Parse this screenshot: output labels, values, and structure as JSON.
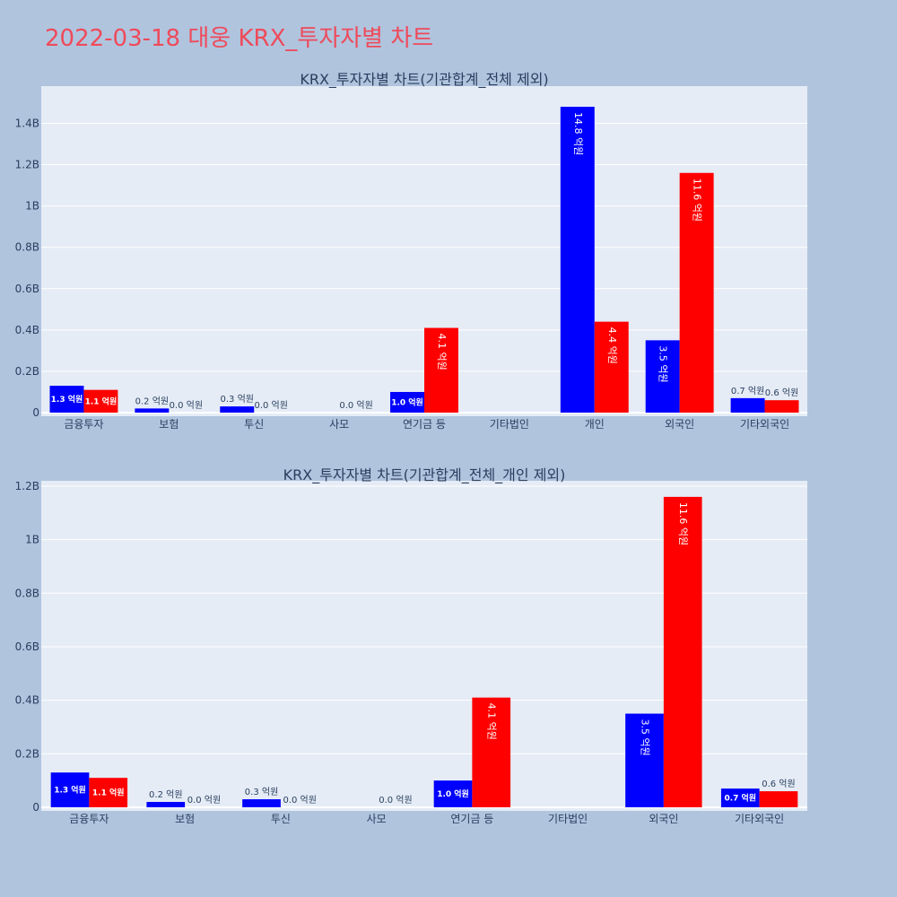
{
  "title": "2022-03-18 대웅 KRX_투자자별 차트",
  "colors": {
    "buy": "#0000ff",
    "sell": "#ff0000",
    "background": "#b0c4de",
    "plot": "#e5ecf6",
    "title": "#ef4a5a"
  },
  "chart_data": [
    {
      "type": "bar",
      "title": "KRX_투자자별 차트(기관합계_전체 제외)",
      "categories": [
        "금융투자",
        "보험",
        "투신",
        "사모",
        "연기금 등",
        "기타법인",
        "개인",
        "외국인",
        "기타외국인"
      ],
      "series": [
        {
          "color": "#0000ff",
          "values": [
            0.13,
            0.02,
            0.03,
            0,
            0.1,
            0,
            1.48,
            0.35,
            0.07
          ],
          "labels": [
            "1.3 억원",
            "0.2 억원",
            "0.3 억원",
            "",
            "1.0 억원",
            "",
            "14.8 억원",
            "3.5 억원",
            "0.7 억원"
          ]
        },
        {
          "color": "#ff0000",
          "values": [
            0.11,
            0.0,
            0.0,
            0.0,
            0.41,
            0,
            0.44,
            1.16,
            0.06
          ],
          "labels": [
            "1.1 억원",
            "0.0 억원",
            "0.0 억원",
            "0.0 억원",
            "4.1 억원",
            "",
            "4.4 억원",
            "11.6 억원",
            "0.6 억원"
          ]
        }
      ],
      "yticks": [
        "0",
        "0.2B",
        "0.4B",
        "0.6B",
        "0.8B",
        "1B",
        "1.2B",
        "1.4B"
      ],
      "ylim": [
        0,
        1.58
      ],
      "grid": true
    },
    {
      "type": "bar",
      "title": "KRX_투자자별 차트(기관합계_전체_개인 제외)",
      "categories": [
        "금융투자",
        "보험",
        "투신",
        "사모",
        "연기금 등",
        "기타법인",
        "외국인",
        "기타외국인"
      ],
      "series": [
        {
          "color": "#0000ff",
          "values": [
            0.13,
            0.02,
            0.03,
            0,
            0.1,
            0,
            0.35,
            0.07
          ],
          "labels": [
            "1.3 억원",
            "0.2 억원",
            "0.3 억원",
            "",
            "1.0 억원",
            "",
            "3.5 억원",
            "0.7 억원"
          ]
        },
        {
          "color": "#ff0000",
          "values": [
            0.11,
            0.0,
            0.0,
            0.0,
            0.41,
            0,
            1.16,
            0.06
          ],
          "labels": [
            "1.1 억원",
            "0.0 억원",
            "0.0 억원",
            "0.0 억원",
            "4.1 억원",
            "",
            "11.6 억원",
            "0.6 억원"
          ]
        }
      ],
      "yticks": [
        "0",
        "0.2B",
        "0.4B",
        "0.6B",
        "0.8B",
        "1B",
        "1.2B"
      ],
      "ylim": [
        0,
        1.22
      ],
      "grid": true
    }
  ]
}
